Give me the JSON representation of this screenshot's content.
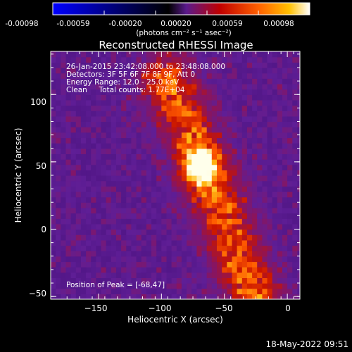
{
  "colorbar": {
    "ticks": [
      "-0.00098",
      "-0.00059",
      "-0.00020",
      "0.00020",
      "0.00059",
      "0.00098"
    ],
    "unit_label": "(photons cm⁻² s⁻¹ asec⁻²)",
    "colors": [
      "#0000ff",
      "#000000",
      "#5a1a8c",
      "#c00000",
      "#ff6000",
      "#ffc000",
      "#ffffff"
    ]
  },
  "chart_data": {
    "type": "heatmap",
    "title": "Reconstructed RHESSI Image",
    "xlabel": "Heliocentric X (arcsec)",
    "ylabel": "Heliocentric Y (arcsec)",
    "xlim": [
      -188,
      10
    ],
    "ylim": [
      -52,
      132
    ],
    "x_ticks": [
      -150,
      -100,
      -50,
      0
    ],
    "y_ticks": [
      -50,
      0,
      50,
      100
    ],
    "x_tick_labels": [
      "−150",
      "−100",
      "−50",
      "0"
    ],
    "y_tick_labels": [
      "−50",
      "0",
      "50",
      "100"
    ],
    "info_lines": [
      "26-Jan-2015 23:42:08.000 to 23:48:08.000",
      "Detectors: 3F 5F 6F 7F 8F 9F, Att 0",
      "Energy Range: 12.0 - 25.0 keV",
      "Clean     Total counts: 1.77E+04"
    ],
    "peak_label": "Position of Peak = [-68,47]",
    "peak": [
      -68,
      47
    ],
    "source_ridge": [
      [
        -95,
        110
      ],
      [
        -80,
        80
      ],
      [
        -68,
        47
      ],
      [
        -55,
        20
      ],
      [
        -35,
        -30
      ],
      [
        -25,
        -50
      ]
    ],
    "colormap": [
      "#5a1a8c",
      "#c00000",
      "#ff6000",
      "#ffc000",
      "#ffffff"
    ]
  },
  "footer": {
    "timestamp": "18-May-2022 09:51"
  }
}
